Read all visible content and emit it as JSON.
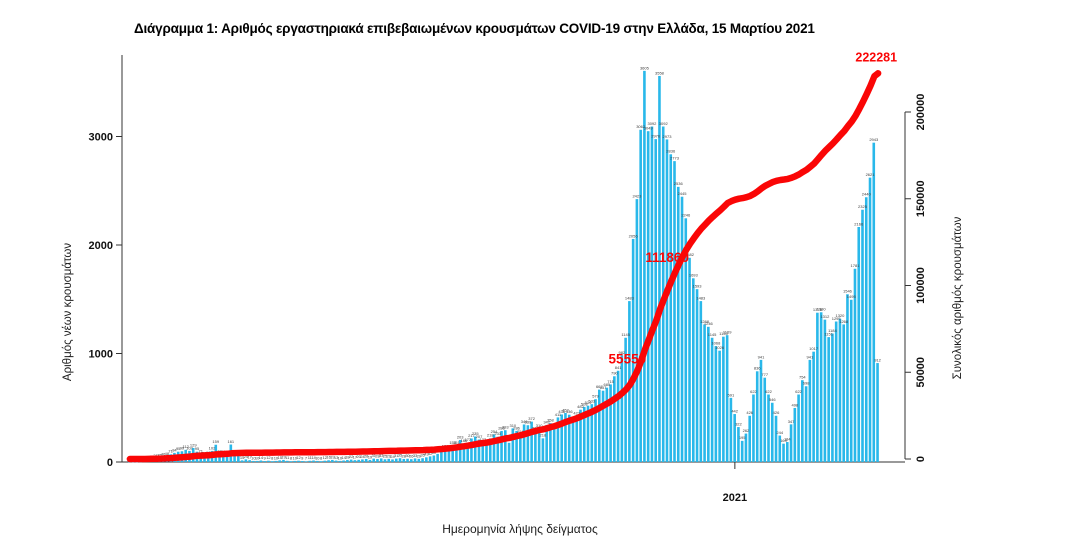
{
  "title": "Διάγραμμα 1: Αριθμός εργαστηριακά επιβεβαιωμένων κρουσμάτων COVID-19 στην Ελλάδα, 15 Μαρτίου 2021",
  "axes": {
    "left": {
      "label": "Αριθμός νέων κρουσμάτων",
      "ticks": [
        {
          "label": "0",
          "value": 0
        },
        {
          "label": "1000",
          "value": 1000
        },
        {
          "label": "2000",
          "value": 2000
        },
        {
          "label": "3000",
          "value": 3000
        }
      ]
    },
    "right": {
      "label": "Συνολικός αριθμός κρουσμάτων",
      "ticks": [
        {
          "label": "0",
          "value": 0
        },
        {
          "label": "50000",
          "value": 50000
        },
        {
          "label": "100000",
          "value": 100000
        },
        {
          "label": "150000",
          "value": 150000
        },
        {
          "label": "200000",
          "value": 200000
        }
      ]
    },
    "x": {
      "label": "Ημερομηνία λήψης δείγματος",
      "ticks": [
        {
          "label": "2021",
          "fraction": 0.807
        }
      ]
    }
  },
  "chart_data": {
    "type": "combo",
    "bar_color": "#29b8ea",
    "line_color": "#fa0606",
    "bar_label_color": "#3c3c3c",
    "ylim_left": [
      0,
      3700
    ],
    "ylim_right": [
      0,
      200000
    ],
    "legend": "none",
    "grid": false,
    "series": [
      {
        "name": "daily_new_cases",
        "type": "bar",
        "values": [
          2,
          0,
          0,
          3,
          7,
          18,
          21,
          31,
          35,
          46,
          48,
          71,
          84,
          95,
          99,
          112,
          102,
          129,
          95,
          71,
          56,
          60,
          102,
          159,
          74,
          68,
          52,
          161,
          55,
          56,
          15,
          24,
          17,
          10,
          10,
          14,
          9,
          12,
          8,
          10,
          15,
          19,
          11,
          8,
          10,
          12,
          9,
          7,
          11,
          14,
          10,
          8,
          12,
          16,
          19,
          13,
          10,
          14,
          18,
          22,
          17,
          20,
          24,
          28,
          19,
          31,
          28,
          33,
          25,
          29,
          24,
          31,
          35,
          28,
          30,
          26,
          33,
          29,
          35,
          43,
          52,
          60,
          75,
          110,
          121,
          98,
          153,
          151,
          203,
          168,
          177,
          217,
          235,
          207,
          177,
          156,
          218,
          254,
          233,
          286,
          293,
          177,
          310,
          286,
          254,
          346,
          339,
          372,
          284,
          310,
          218,
          342,
          358,
          312,
          411,
          438,
          452,
          436,
          369,
          423,
          482,
          508,
          519,
          533,
          579,
          667,
          657,
          685,
          715,
          790,
          841,
          982,
          1145,
          1483,
          2056,
          2423,
          3062,
          3605,
          3049,
          3092,
          2976,
          3558,
          3092,
          2973,
          2836,
          2773,
          2536,
          2445,
          2246,
          1882,
          1693,
          1593,
          1483,
          1268,
          1246,
          1145,
          1068,
          1026,
          1155,
          1169,
          591,
          442,
          322,
          195,
          262,
          426,
          622,
          836,
          941,
          777,
          622,
          546,
          426,
          244,
          169,
          184,
          347,
          498,
          622,
          754,
          698,
          941,
          1017,
          1376,
          1380,
          1312,
          1151,
          1184,
          1295,
          1320,
          1268,
          1546,
          1495,
          1781,
          2166,
          2325,
          2440,
          2621,
          2943,
          912
        ]
      },
      {
        "name": "cumulative_cases",
        "type": "line",
        "derivation": "running-sum-of-daily-values-scaled-to-final",
        "final_value": 222281
      }
    ],
    "annotations": [
      {
        "text": "55559",
        "fx": 0.664,
        "dy": -26,
        "size": 13.5,
        "layer": "below-line"
      },
      {
        "text": "111860",
        "fx": 0.717,
        "dy": -28,
        "size": 13.5,
        "layer": "below-line"
      },
      {
        "text": "222281",
        "fx": 0.995,
        "dy": -12,
        "size": 12.5,
        "layer": "above-line"
      }
    ]
  }
}
